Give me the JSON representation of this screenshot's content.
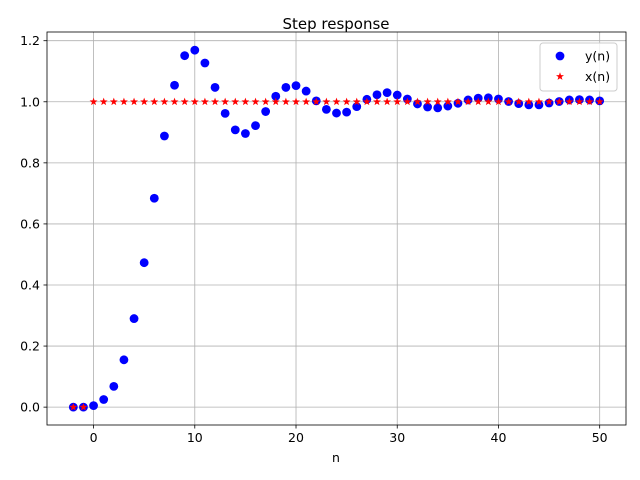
{
  "chart_data": {
    "type": "scatter",
    "title": "Step response",
    "xlabel": "n",
    "ylabel": "",
    "xlim": [
      -4.6,
      52.6
    ],
    "ylim": [
      -0.0585,
      1.2285
    ],
    "xticks": [
      0,
      10,
      20,
      30,
      40,
      50
    ],
    "yticks": [
      0.0,
      0.2,
      0.4,
      0.6,
      0.8,
      1.0,
      1.2
    ],
    "xtick_labels": [
      "0",
      "10",
      "20",
      "30",
      "40",
      "50"
    ],
    "ytick_labels": [
      "0.0",
      "0.2",
      "0.4",
      "0.6",
      "0.8",
      "1.0",
      "1.2"
    ],
    "grid": true,
    "legend_position": "top-right",
    "series": [
      {
        "name": "y(n)",
        "marker": "circle",
        "color": "#0000ff",
        "x": [
          -2,
          -1,
          0,
          1,
          2,
          3,
          4,
          5,
          6,
          7,
          8,
          9,
          10,
          11,
          12,
          13,
          14,
          15,
          16,
          17,
          18,
          19,
          20,
          21,
          22,
          23,
          24,
          25,
          26,
          27,
          28,
          29,
          30,
          31,
          32,
          33,
          34,
          35,
          36,
          37,
          38,
          39,
          40,
          41,
          42,
          43,
          44,
          45,
          46,
          47,
          48,
          49,
          50
        ],
        "values": [
          0,
          0,
          0.005,
          0.025,
          0.068,
          0.155,
          0.29,
          0.473,
          0.684,
          0.888,
          1.054,
          1.151,
          1.169,
          1.127,
          1.047,
          0.962,
          0.908,
          0.896,
          0.922,
          0.968,
          1.018,
          1.047,
          1.053,
          1.035,
          1.003,
          0.975,
          0.963,
          0.966,
          0.984,
          1.008,
          1.023,
          1.03,
          1.022,
          1.009,
          0.993,
          0.983,
          0.98,
          0.986,
          0.995,
          1.006,
          1.012,
          1.013,
          1.009,
          1.001,
          0.994,
          0.99,
          0.99,
          0.996,
          1.001,
          1.006,
          1.007,
          1.006,
          1.003
        ]
      },
      {
        "name": "x(n)",
        "marker": "star",
        "color": "#ff0000",
        "x": [
          -2,
          -1,
          0,
          1,
          2,
          3,
          4,
          5,
          6,
          7,
          8,
          9,
          10,
          11,
          12,
          13,
          14,
          15,
          16,
          17,
          18,
          19,
          20,
          21,
          22,
          23,
          24,
          25,
          26,
          27,
          28,
          29,
          30,
          31,
          32,
          33,
          34,
          35,
          36,
          37,
          38,
          39,
          40,
          41,
          42,
          43,
          44,
          45,
          46,
          47,
          48,
          49,
          50
        ],
        "values": [
          0,
          0,
          1,
          1,
          1,
          1,
          1,
          1,
          1,
          1,
          1,
          1,
          1,
          1,
          1,
          1,
          1,
          1,
          1,
          1,
          1,
          1,
          1,
          1,
          1,
          1,
          1,
          1,
          1,
          1,
          1,
          1,
          1,
          1,
          1,
          1,
          1,
          1,
          1,
          1,
          1,
          1,
          1,
          1,
          1,
          1,
          1,
          1,
          1,
          1,
          1,
          1,
          1
        ]
      }
    ]
  }
}
